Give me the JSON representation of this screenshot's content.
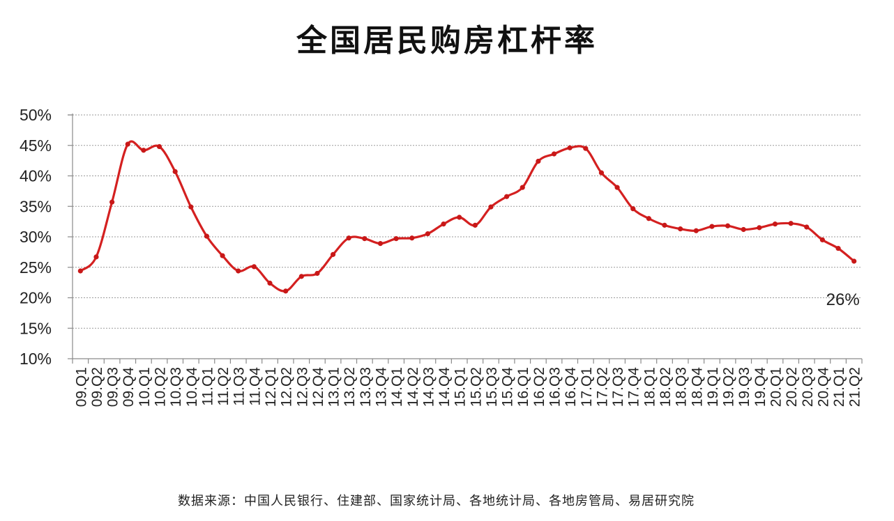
{
  "chart_data": {
    "type": "line",
    "title": "全国居民购房杠杆率",
    "source": "数据来源：中国人民银行、住建部、国家统计局、各地统计局、各地房管局、易居研究院",
    "ylim": [
      0.1,
      0.5
    ],
    "yticks": [
      0.1,
      0.15,
      0.2,
      0.25,
      0.3,
      0.35,
      0.4,
      0.45,
      0.5
    ],
    "ytick_labels": [
      "10%",
      "15%",
      "20%",
      "25%",
      "30%",
      "35%",
      "40%",
      "45%",
      "50%"
    ],
    "grid": true,
    "legend": false,
    "line_color": "#d42020",
    "end_label": "26%",
    "categories": [
      "09.Q1",
      "09.Q2",
      "09.Q3",
      "09.Q4",
      "10.Q1",
      "10.Q2",
      "10.Q3",
      "10.Q4",
      "11.Q1",
      "11.Q2",
      "11.Q3",
      "11.Q4",
      "12.Q1",
      "12.Q2",
      "12.Q3",
      "12.Q4",
      "13.Q1",
      "13.Q2",
      "13.Q3",
      "13.Q4",
      "14.Q1",
      "14.Q2",
      "14.Q3",
      "14.Q4",
      "15.Q1",
      "15.Q2",
      "15.Q3",
      "15.Q4",
      "16.Q1",
      "16.Q2",
      "16.Q3",
      "16.Q4",
      "17.Q1",
      "17.Q2",
      "17.Q3",
      "17.Q4",
      "18.Q1",
      "18.Q2",
      "18.Q3",
      "18.Q4",
      "19.Q1",
      "19.Q2",
      "19.Q3",
      "19.Q4",
      "20.Q1",
      "20.Q2",
      "20.Q3",
      "20.Q4",
      "21.Q1",
      "21.Q2"
    ],
    "values": [
      0.244,
      0.267,
      0.357,
      0.452,
      0.442,
      0.448,
      0.407,
      0.349,
      0.301,
      0.269,
      0.244,
      0.251,
      0.224,
      0.211,
      0.235,
      0.24,
      0.271,
      0.298,
      0.297,
      0.289,
      0.297,
      0.298,
      0.305,
      0.321,
      0.332,
      0.319,
      0.349,
      0.366,
      0.381,
      0.424,
      0.436,
      0.446,
      0.445,
      0.405,
      0.381,
      0.346,
      0.33,
      0.319,
      0.313,
      0.31,
      0.317,
      0.318,
      0.312,
      0.315,
      0.321,
      0.322,
      0.316,
      0.295,
      0.281,
      0.26
    ]
  }
}
